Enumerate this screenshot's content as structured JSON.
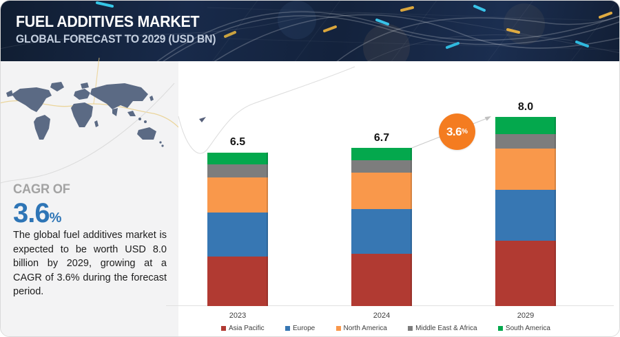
{
  "header": {
    "title": "FUEL ADDITIVES MARKET",
    "subtitle": "GLOBAL FORECAST TO 2029 (USD BN)"
  },
  "sidebar": {
    "cagr_label": "CAGR OF",
    "cagr_value": "3.6",
    "cagr_unit": "%",
    "description": "The global fuel additives market is expected to be worth USD 8.0 billion by 2029, growing at a CAGR of 3.6% during the forecast period."
  },
  "callout": {
    "value": "3.6",
    "unit": "%",
    "color": "#f47c20"
  },
  "chart_data": {
    "type": "bar",
    "stacked": true,
    "title": "Fuel Additives Market, Global Forecast to 2029 (USD BN)",
    "categories": [
      "2023",
      "2024",
      "2029"
    ],
    "totals": [
      6.5,
      6.7,
      8.0
    ],
    "series": [
      {
        "name": "Asia Pacific",
        "color": "#b13a32",
        "values": [
          2.1,
          2.2,
          2.75
        ]
      },
      {
        "name": "Europe",
        "color": "#3777b3",
        "values": [
          1.85,
          1.9,
          2.15
        ]
      },
      {
        "name": "North America",
        "color": "#f9984b",
        "values": [
          1.5,
          1.55,
          1.75
        ]
      },
      {
        "name": "Middle East & Africa",
        "color": "#7d7d7d",
        "values": [
          0.55,
          0.5,
          0.63
        ]
      },
      {
        "name": "South America",
        "color": "#04a84d",
        "values": [
          0.5,
          0.55,
          0.72
        ]
      }
    ],
    "ylabel": "USD BN",
    "ylim": [
      0,
      8.6
    ],
    "grid": false,
    "legend_position": "bottom",
    "value_labels": "total above each bar",
    "cagr_annotation": "3.6% between 2024 and 2029"
  }
}
